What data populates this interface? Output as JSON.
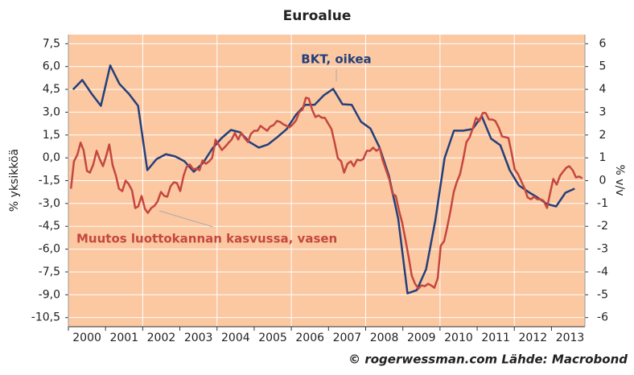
{
  "chart_data": {
    "type": "line",
    "title": "Euroalue",
    "ylabel": "% yksikköä",
    "y2label": "% v/v",
    "source": "© rogerwessman.com Lähde: Macrobond",
    "background": "#fbc8a2",
    "grid": true,
    "xlim": [
      2000,
      2013.9
    ],
    "xticks": [
      2000,
      2001,
      2002,
      2003,
      2004,
      2005,
      2006,
      2007,
      2008,
      2009,
      2010,
      2011,
      2012,
      2013
    ],
    "ylim": [
      -11.1,
      8.1
    ],
    "yticks": [
      {
        "value": 7.5,
        "label": "7,5"
      },
      {
        "value": 6,
        "label": "6,0"
      },
      {
        "value": 4.5,
        "label": "4,5"
      },
      {
        "value": 3,
        "label": "3,0"
      },
      {
        "value": 1.5,
        "label": "1,5"
      },
      {
        "value": 0,
        "label": "0,0"
      },
      {
        "value": -1.5,
        "label": "-1,5"
      },
      {
        "value": -3,
        "label": "-3,0"
      },
      {
        "value": -4.5,
        "label": "-4,5"
      },
      {
        "value": -6,
        "label": "-6,0"
      },
      {
        "value": -7.5,
        "label": "-7,5"
      },
      {
        "value": -9,
        "label": "-9,0"
      },
      {
        "value": -10.5,
        "label": "-10,5"
      }
    ],
    "y2lim": [
      -6.4,
      6.4
    ],
    "y2ticks": [
      6,
      5,
      4,
      3,
      2,
      1,
      0,
      -1,
      -2,
      -3,
      -4,
      -5,
      -6
    ],
    "series": [
      {
        "name": "BKT, oikea",
        "color": "#243f7a",
        "axis": "y2",
        "x": [
          2000.125,
          2000.375,
          2000.625,
          2000.875,
          2001.125,
          2001.375,
          2001.625,
          2001.875,
          2002.125,
          2002.375,
          2002.625,
          2002.875,
          2003.125,
          2003.375,
          2003.625,
          2003.875,
          2004.125,
          2004.375,
          2004.625,
          2004.875,
          2005.125,
          2005.375,
          2005.625,
          2005.875,
          2006.125,
          2006.375,
          2006.625,
          2006.875,
          2007.125,
          2007.375,
          2007.625,
          2007.875,
          2008.125,
          2008.375,
          2008.625,
          2008.875,
          2009.125,
          2009.375,
          2009.625,
          2009.875,
          2010.125,
          2010.375,
          2010.625,
          2010.875,
          2011.125,
          2011.375,
          2011.625,
          2011.875,
          2012.125,
          2012.375,
          2012.625,
          2012.875,
          2013.125,
          2013.375,
          2013.625
        ],
        "values": [
          3.99,
          4.41,
          3.81,
          3.28,
          5.05,
          4.24,
          3.81,
          3.28,
          0.46,
          0.95,
          1.16,
          1.06,
          0.85,
          0.39,
          0.78,
          1.41,
          1.87,
          2.22,
          2.12,
          1.69,
          1.45,
          1.59,
          1.91,
          2.26,
          2.89,
          3.32,
          3.32,
          3.74,
          4.02,
          3.35,
          3.32,
          2.58,
          2.29,
          1.45,
          0.21,
          -1.66,
          -4.94,
          -4.8,
          -3.88,
          -1.73,
          0.99,
          2.19,
          2.19,
          2.26,
          2.82,
          1.84,
          1.55,
          0.46,
          -0.21,
          -0.49,
          -0.74,
          -1.02,
          -1.13,
          -0.53,
          -0.35
        ]
      },
      {
        "name": "Muutos luottokannan kasvussa, vasen",
        "color": "#c4473f",
        "axis": "y",
        "x": [
          2000.07,
          2000.15,
          2000.24,
          2000.33,
          2000.41,
          2000.5,
          2000.58,
          2000.67,
          2000.76,
          2000.84,
          2000.93,
          2001.02,
          2001.1,
          2001.19,
          2001.28,
          2001.36,
          2001.45,
          2001.54,
          2001.62,
          2001.71,
          2001.8,
          2001.88,
          2001.97,
          2002.06,
          2002.14,
          2002.23,
          2002.32,
          2002.4,
          2002.49,
          2002.58,
          2002.66,
          2002.75,
          2002.84,
          2002.92,
          2003.01,
          2003.1,
          2003.18,
          2003.27,
          2003.36,
          2003.44,
          2003.53,
          2003.61,
          2003.7,
          2003.79,
          2003.87,
          2003.96,
          2004.05,
          2004.13,
          2004.22,
          2004.31,
          2004.39,
          2004.48,
          2004.57,
          2004.65,
          2004.74,
          2004.83,
          2004.91,
          2005.0,
          2005.09,
          2005.17,
          2005.26,
          2005.35,
          2005.43,
          2005.52,
          2005.61,
          2005.69,
          2005.78,
          2005.87,
          2005.95,
          2006.04,
          2006.13,
          2006.21,
          2006.3,
          2006.39,
          2006.47,
          2006.56,
          2006.65,
          2006.73,
          2006.82,
          2006.9,
          2006.99,
          2007.08,
          2007.16,
          2007.25,
          2007.34,
          2007.42,
          2007.51,
          2007.6,
          2007.68,
          2007.77,
          2007.86,
          2007.94,
          2008.03,
          2008.12,
          2008.2,
          2008.29,
          2008.38,
          2008.46,
          2008.55,
          2008.64,
          2008.72,
          2008.81,
          2008.9,
          2008.98,
          2009.07,
          2009.16,
          2009.24,
          2009.33,
          2009.42,
          2009.5,
          2009.59,
          2009.68,
          2009.76,
          2009.85,
          2009.94,
          2010.02,
          2010.11,
          2010.19,
          2010.28,
          2010.37,
          2010.45,
          2010.54,
          2010.63,
          2010.71,
          2010.8,
          2010.89,
          2010.97,
          2011.06,
          2011.15,
          2011.23,
          2011.32,
          2011.41,
          2011.49,
          2011.58,
          2011.67,
          2011.75,
          2011.84,
          2011.93,
          2012.01,
          2012.1,
          2012.19,
          2012.27,
          2012.36,
          2012.45,
          2012.53,
          2012.62,
          2012.71,
          2012.79,
          2012.88,
          2012.96,
          2013.05,
          2013.14,
          2013.23,
          2013.31,
          2013.4,
          2013.48,
          2013.57,
          2013.66,
          2013.74,
          2013.83
        ],
        "values": [
          -2.03,
          -0.23,
          0.2,
          1.0,
          0.5,
          -0.86,
          -0.97,
          -0.44,
          0.46,
          -0.07,
          -0.55,
          0.14,
          0.88,
          -0.49,
          -1.18,
          -2.03,
          -2.19,
          -1.5,
          -1.71,
          -2.13,
          -3.3,
          -3.19,
          -2.5,
          -3.35,
          -3.62,
          -3.3,
          -3.14,
          -2.87,
          -2.24,
          -2.5,
          -2.56,
          -1.87,
          -1.6,
          -1.66,
          -2.19,
          -1.18,
          -0.6,
          -0.44,
          -0.76,
          -0.7,
          -0.81,
          -0.17,
          -0.39,
          -0.23,
          0.0,
          1.2,
          0.83,
          0.51,
          0.73,
          0.99,
          1.2,
          1.63,
          1.2,
          1.63,
          1.31,
          1.04,
          1.57,
          1.78,
          1.78,
          2.1,
          1.94,
          1.78,
          2.05,
          2.15,
          2.42,
          2.37,
          2.21,
          2.1,
          2.0,
          2.21,
          2.47,
          3.0,
          3.16,
          3.95,
          3.9,
          3.16,
          2.68,
          2.79,
          2.63,
          2.63,
          2.26,
          1.89,
          1.04,
          -0.02,
          -0.23,
          -0.97,
          -0.39,
          -0.23,
          -0.55,
          -0.12,
          -0.17,
          -0.07,
          0.46,
          0.46,
          0.67,
          0.46,
          0.62,
          -0.17,
          -0.81,
          -1.45,
          -2.35,
          -2.5,
          -3.51,
          -4.25,
          -5.36,
          -6.58,
          -7.75,
          -8.28,
          -8.6,
          -8.38,
          -8.44,
          -8.28,
          -8.38,
          -8.54,
          -7.9,
          -5.78,
          -5.47,
          -4.62,
          -3.51,
          -2.24,
          -1.6,
          -1.07,
          -0.02,
          1.04,
          1.36,
          2.0,
          2.63,
          2.42,
          2.95,
          2.95,
          2.52,
          2.52,
          2.42,
          2.0,
          1.41,
          1.36,
          1.31,
          0.3,
          -0.76,
          -1.07,
          -1.55,
          -1.97,
          -2.61,
          -2.72,
          -2.56,
          -2.72,
          -2.72,
          -2.82,
          -3.3,
          -2.35,
          -1.39,
          -1.76,
          -1.18,
          -0.92,
          -0.65,
          -0.55,
          -0.81,
          -1.29,
          -1.23,
          -1.34
        ]
      }
    ]
  }
}
